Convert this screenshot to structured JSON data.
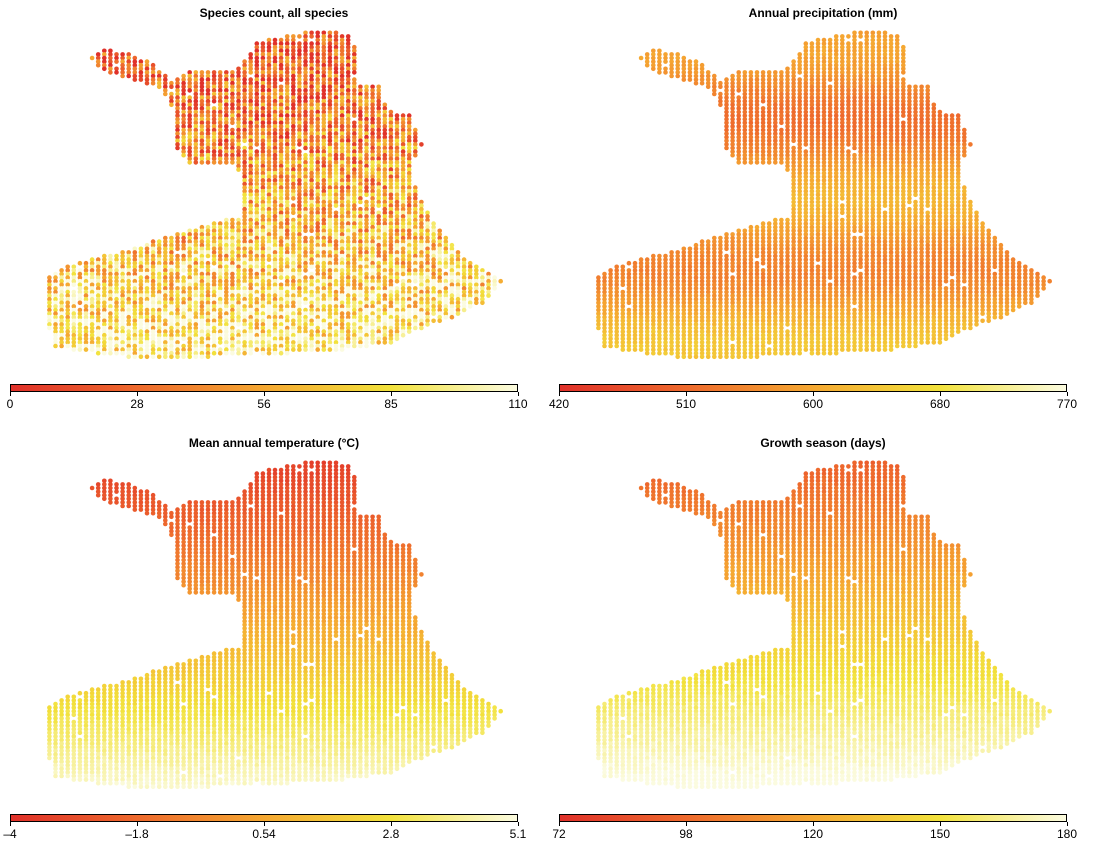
{
  "colors": {
    "ramp": [
      "#e0312a",
      "#ee6a2d",
      "#f5a832",
      "#f2e23c",
      "#fbfbe0"
    ]
  },
  "panels": [
    {
      "title": "Species count, all species",
      "ticks": [
        "0",
        "28",
        "56",
        "85",
        "110"
      ],
      "style": "speckle"
    },
    {
      "title": "Annual precipitation (mm)",
      "ticks": [
        "420",
        "510",
        "600",
        "680",
        "770"
      ],
      "style": "banded"
    },
    {
      "title": "Mean annual temperature (°C)",
      "ticks": [
        "–4",
        "–1.8",
        "0.54",
        "2.8",
        "5.1"
      ],
      "style": "gradient"
    },
    {
      "title": "Growth season (days)",
      "ticks": [
        "72",
        "98",
        "120",
        "150",
        "180"
      ],
      "style": "gradient2"
    }
  ]
}
